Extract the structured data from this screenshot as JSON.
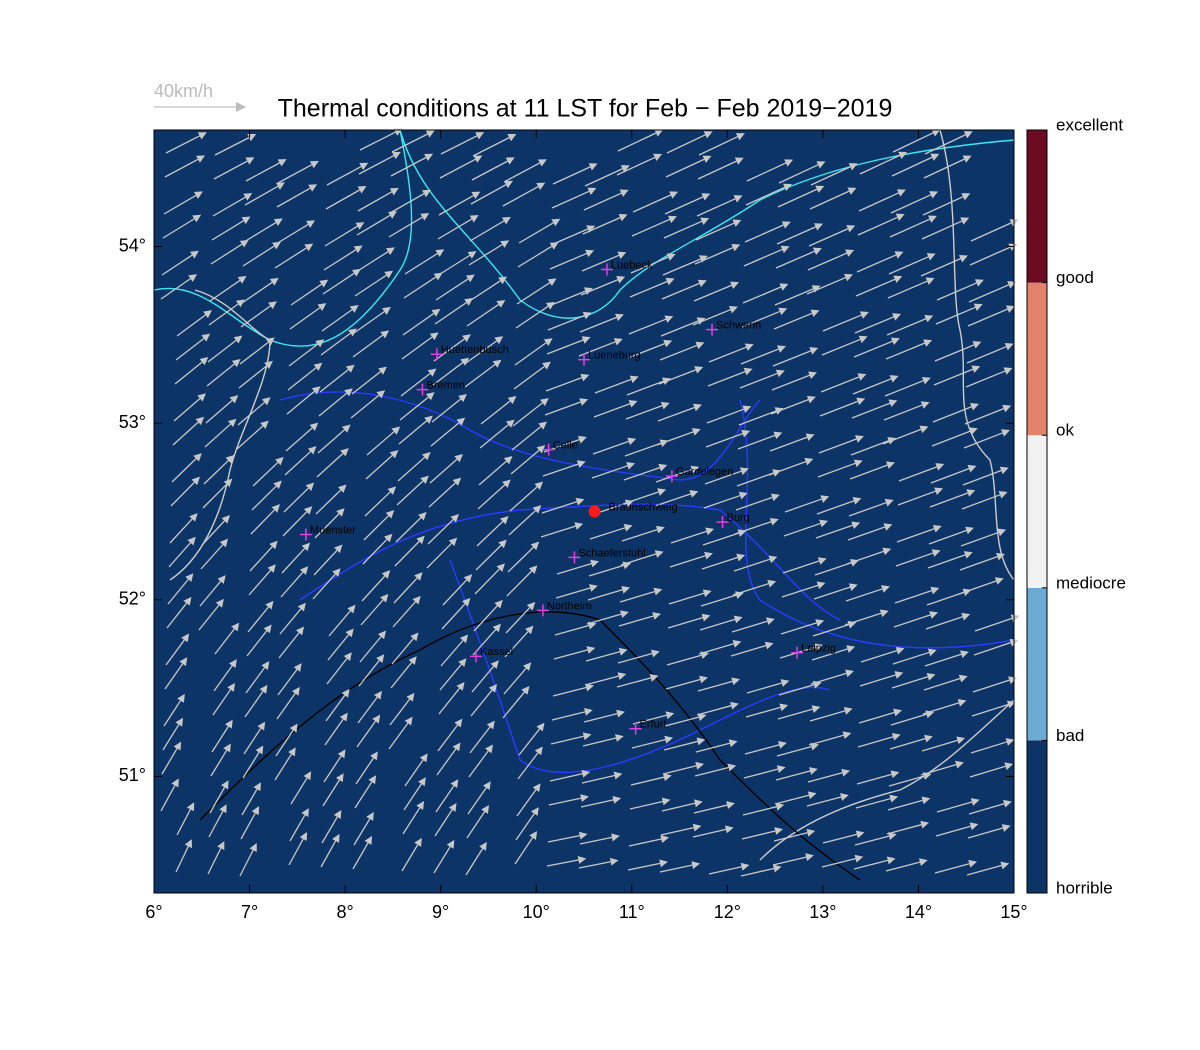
{
  "map": {
    "title": "Thermal conditions at 11 LST for Feb − Feb  2019−2019",
    "wind_scale_label": "40km/h",
    "xlim": [
      6,
      15
    ],
    "ylim": [
      50.34,
      54.66
    ],
    "xticks": [
      {
        "value": 6,
        "label": "6°"
      },
      {
        "value": 7,
        "label": "7°"
      },
      {
        "value": 8,
        "label": "8°"
      },
      {
        "value": 9,
        "label": "9°"
      },
      {
        "value": 10,
        "label": "10°"
      },
      {
        "value": 11,
        "label": "11°"
      },
      {
        "value": 12,
        "label": "12°"
      },
      {
        "value": 13,
        "label": "13°"
      },
      {
        "value": 14,
        "label": "14°"
      },
      {
        "value": 15,
        "label": "15°"
      }
    ],
    "yticks": [
      {
        "value": 51,
        "label": "51°"
      },
      {
        "value": 52,
        "label": "52°"
      },
      {
        "value": 53,
        "label": "53°"
      },
      {
        "value": 54,
        "label": "54°"
      }
    ],
    "background_color": "#0d3466",
    "colorbar": {
      "labels": [
        "horrible",
        "bad",
        "mediocre",
        "ok",
        "good",
        "excellent"
      ],
      "colors": [
        "#0d3466",
        "#6aaad3",
        "#f2f2f3",
        "#e3826a",
        "#6b0a20"
      ]
    },
    "cities": [
      {
        "name": "Luebeck",
        "lon": 10.74,
        "lat": 53.87,
        "marker": "plus"
      },
      {
        "name": "Schwerin",
        "lon": 11.84,
        "lat": 53.53,
        "marker": "plus"
      },
      {
        "name": "Huettenbusch",
        "lon": 8.96,
        "lat": 53.39,
        "marker": "plus"
      },
      {
        "name": "Lueneburg",
        "lon": 10.5,
        "lat": 53.36,
        "marker": "plus"
      },
      {
        "name": "Bremen",
        "lon": 8.81,
        "lat": 53.19,
        "marker": "plus"
      },
      {
        "name": "Celle",
        "lon": 10.13,
        "lat": 52.85,
        "marker": "plus"
      },
      {
        "name": "Gardelegen",
        "lon": 11.42,
        "lat": 52.7,
        "marker": "plus"
      },
      {
        "name": "Braunschweig",
        "lon": 10.61,
        "lat": 52.5,
        "marker": "dot"
      },
      {
        "name": "Burg",
        "lon": 11.95,
        "lat": 52.44,
        "marker": "plus"
      },
      {
        "name": "Muenster",
        "lon": 7.59,
        "lat": 52.37,
        "marker": "plus"
      },
      {
        "name": "Schaeferstuhl",
        "lon": 10.4,
        "lat": 52.24,
        "marker": "plus"
      },
      {
        "name": "Northeim",
        "lon": 10.07,
        "lat": 51.94,
        "marker": "plus"
      },
      {
        "name": "Kassel",
        "lon": 9.37,
        "lat": 51.68,
        "marker": "plus"
      },
      {
        "name": "Leipzig",
        "lon": 12.73,
        "lat": 51.7,
        "marker": "plus"
      },
      {
        "name": "Erfurt",
        "lon": 11.04,
        "lat": 51.27,
        "marker": "plus"
      }
    ]
  }
}
